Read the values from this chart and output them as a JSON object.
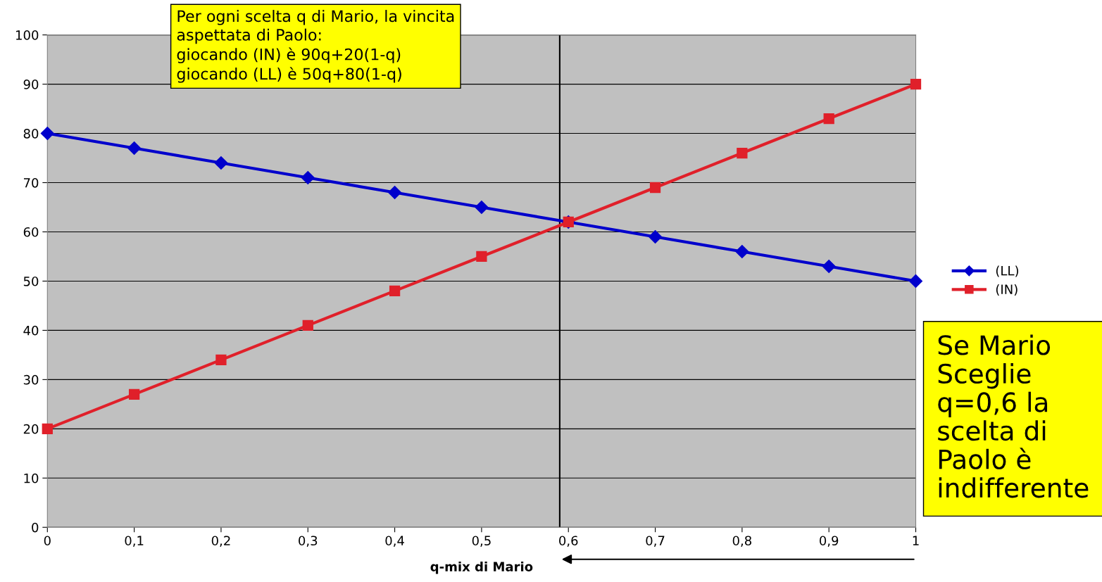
{
  "chart_data": {
    "type": "line",
    "x": [
      0,
      0.1,
      0.2,
      0.3,
      0.4,
      0.5,
      0.6,
      0.7,
      0.8,
      0.9,
      1
    ],
    "series": [
      {
        "name": "(LL)",
        "color": "#0000cc",
        "marker": "diamond",
        "values": [
          80,
          77,
          74,
          71,
          68,
          65,
          62,
          59,
          56,
          53,
          50
        ]
      },
      {
        "name": "(IN)",
        "color": "#e0202a",
        "marker": "square",
        "values": [
          20,
          27,
          34,
          41,
          48,
          55,
          62,
          69,
          76,
          83,
          90
        ]
      }
    ],
    "xlabel": "q-mix di Mario",
    "xlim": [
      0,
      1
    ],
    "xticks": [
      0,
      {
        "value": 0.1,
        "label": "0,1"
      },
      {
        "value": 0.2,
        "label": "0,2"
      },
      {
        "value": 0.3,
        "label": "0,3"
      },
      {
        "value": 0.4,
        "label": "0,4"
      },
      {
        "value": 0.5,
        "label": "0,5"
      },
      {
        "value": 0.6,
        "label": "0,6"
      },
      {
        "value": 0.7,
        "label": "0,7"
      },
      {
        "value": 0.8,
        "label": "0,8"
      },
      {
        "value": 0.9,
        "label": "0,9"
      },
      1
    ],
    "ylim": [
      0,
      100
    ],
    "yticks": [
      0,
      10,
      20,
      30,
      40,
      50,
      60,
      70,
      80,
      90,
      100
    ],
    "grid": "y",
    "legend": "right",
    "line_style": "solid",
    "ref_lines": [
      {
        "axis": "x",
        "value": 0.59,
        "color": "#000000"
      }
    ],
    "annotations": [
      "Per ogni scelta q di Mario, la vincita\naspettata di Paolo:\ngiocando (IN) è 90q+20(1-q)\ngiocando (LL) è 50q+80(1-q)",
      "Se Mario\nSceglie\nq=0,6 la\nscelta di\nPaolo è\nindifferente"
    ]
  }
}
